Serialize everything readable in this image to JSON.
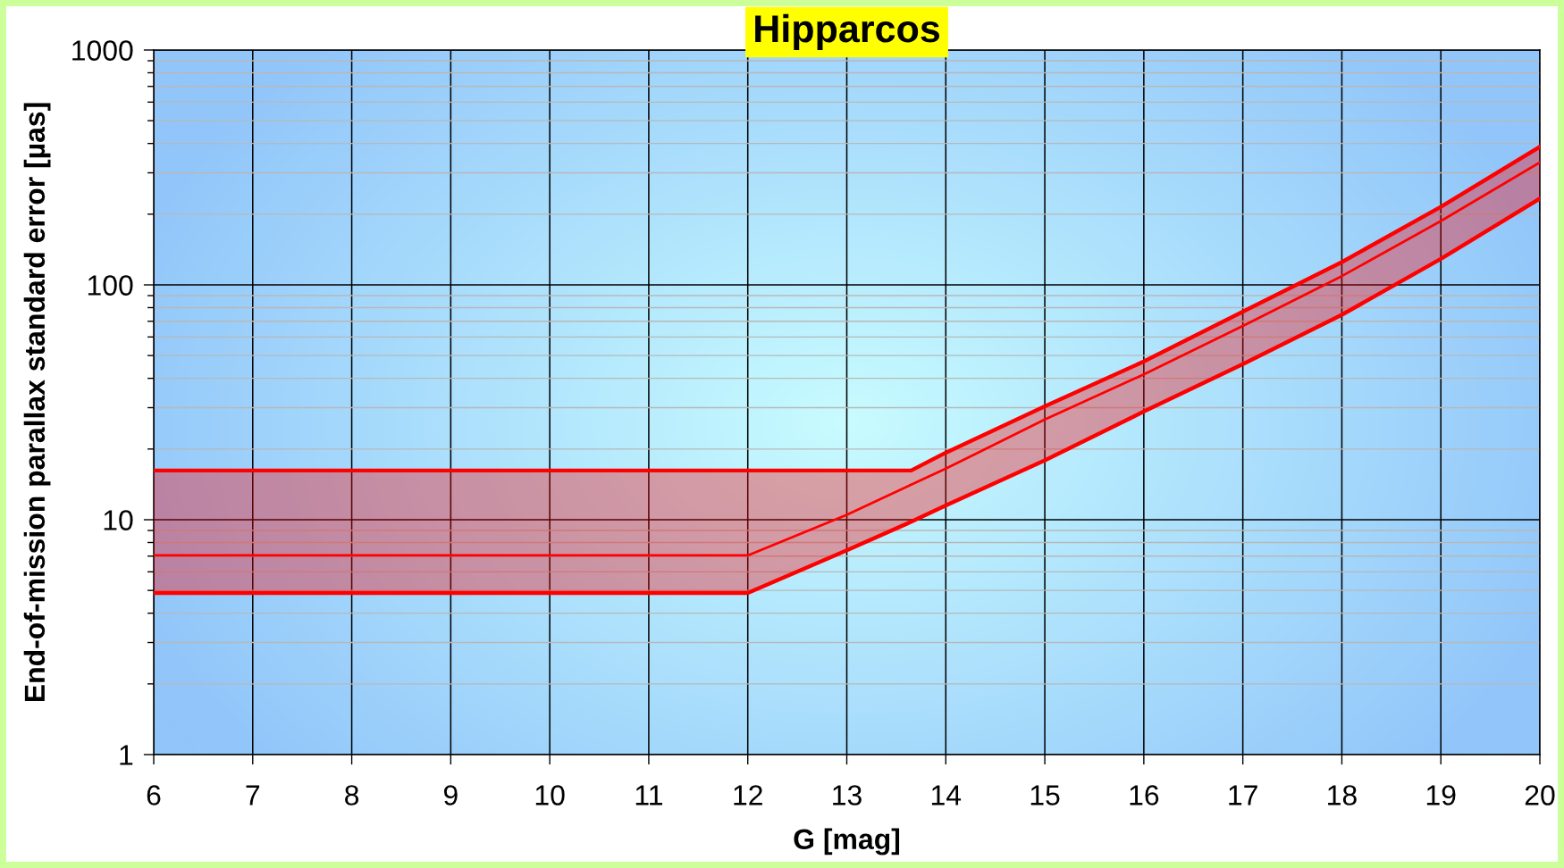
{
  "chart_data": {
    "type": "line",
    "title": "Hipparcos",
    "xlabel": "G [mag]",
    "ylabel": "End-of-mission parallax standard error [µas]",
    "x": [
      6,
      12,
      13,
      13.65,
      14,
      15,
      16,
      17,
      18,
      19,
      20
    ],
    "series": [
      {
        "color": "#ff0000",
        "values": [
          16.2,
          16.2,
          16.2,
          16.2,
          19.3,
          30.4,
          47.2,
          76.9,
          125,
          215,
          387
        ]
      },
      {
        "color": "#ff0000",
        "values": [
          7.05,
          7.05,
          10.5,
          14.1,
          16.5,
          26.7,
          41.6,
          66.9,
          109,
          187,
          332
        ],
        "lower": [
          4.88,
          4.88,
          7.41,
          9.8,
          11.5,
          17.9,
          28.9,
          46.0,
          74.6,
          129,
          233
        ],
        "upper": [
          16.2,
          16.2,
          16.2,
          16.2,
          19.3,
          30.4,
          47.2,
          76.9,
          125,
          215,
          387
        ]
      },
      {
        "color": "#ff0000",
        "values": [
          4.88,
          4.88,
          7.41,
          9.8,
          11.5,
          17.9,
          28.9,
          46.0,
          74.6,
          129,
          233
        ]
      }
    ],
    "log": "y",
    "xlim": [
      6,
      20
    ],
    "ylim": [
      1,
      1000
    ],
    "xticks": [
      6,
      7,
      8,
      9,
      10,
      11,
      12,
      13,
      14,
      15,
      16,
      17,
      18,
      19,
      20
    ],
    "yticks": [
      1,
      10,
      100,
      1000
    ],
    "grid": true,
    "marker": "none",
    "line_style": "solid"
  }
}
